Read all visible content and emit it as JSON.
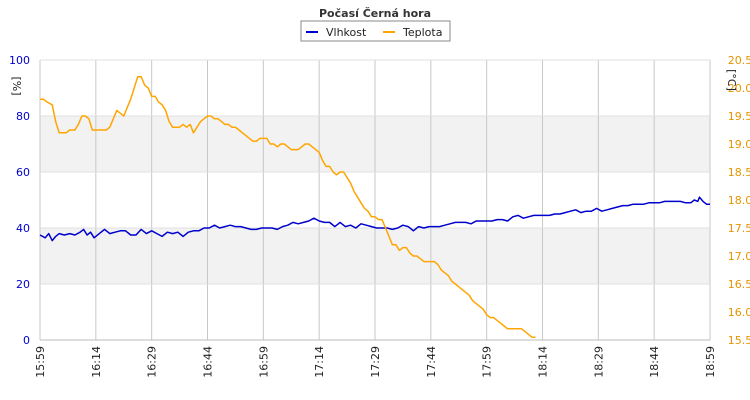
{
  "chart_data": {
    "type": "line",
    "title": "Počasí Černá hora",
    "legend_position": "top-center",
    "grid": true,
    "x_categories": [
      "15:59",
      "16:14",
      "16:29",
      "16:44",
      "16:59",
      "17:14",
      "17:29",
      "17:44",
      "17:59",
      "18:14",
      "18:29",
      "18:44",
      "18:59"
    ],
    "y_left": {
      "label": "[%]",
      "min": 0,
      "max": 100,
      "ticks": [
        0,
        20,
        40,
        60,
        80,
        100
      ]
    },
    "y_right": {
      "label": "[°C]",
      "min": 15.5,
      "max": 20.5,
      "ticks": [
        "15.5",
        "16.0",
        "16.5",
        "17.0",
        "17.5",
        "18.0",
        "18.5",
        "19.0",
        "19.5",
        "20.0",
        "20.5"
      ]
    },
    "series": [
      {
        "name": "Vlhkost",
        "axis": "left",
        "color": "#0000cc",
        "points": [
          [
            0,
            37.5
          ],
          [
            3,
            36.5
          ],
          [
            5,
            38
          ],
          [
            7,
            35.5
          ],
          [
            9,
            37
          ],
          [
            11,
            38
          ],
          [
            14,
            37.5
          ],
          [
            17,
            38
          ],
          [
            20,
            37.5
          ],
          [
            23,
            38.5
          ],
          [
            25,
            39.5
          ],
          [
            27,
            37.5
          ],
          [
            29,
            38.5
          ],
          [
            31,
            36.5
          ],
          [
            34,
            38
          ],
          [
            37,
            39.5
          ],
          [
            40,
            38
          ],
          [
            43,
            38.5
          ],
          [
            46,
            39
          ],
          [
            49,
            39
          ],
          [
            52,
            37.5
          ],
          [
            55,
            37.5
          ],
          [
            58,
            39.5
          ],
          [
            61,
            38
          ],
          [
            64,
            39
          ],
          [
            67,
            38
          ],
          [
            70,
            37
          ],
          [
            73,
            38.5
          ],
          [
            76,
            38
          ],
          [
            79,
            38.5
          ],
          [
            82,
            37
          ],
          [
            85,
            38.5
          ],
          [
            88,
            39
          ],
          [
            91,
            39
          ],
          [
            94,
            40
          ],
          [
            97,
            40
          ],
          [
            100,
            41
          ],
          [
            103,
            40
          ],
          [
            106,
            40.5
          ],
          [
            109,
            41
          ],
          [
            112,
            40.5
          ],
          [
            115,
            40.5
          ],
          [
            118,
            40
          ],
          [
            121,
            39.5
          ],
          [
            124,
            39.5
          ],
          [
            127,
            40
          ],
          [
            130,
            40
          ],
          [
            133,
            40
          ],
          [
            136,
            39.5
          ],
          [
            139,
            40.5
          ],
          [
            142,
            41
          ],
          [
            145,
            42
          ],
          [
            148,
            41.5
          ],
          [
            151,
            42
          ],
          [
            154,
            42.5
          ],
          [
            157,
            43.5
          ],
          [
            160,
            42.5
          ],
          [
            163,
            42
          ],
          [
            166,
            42
          ],
          [
            169,
            40.5
          ],
          [
            172,
            42
          ],
          [
            175,
            40.5
          ],
          [
            178,
            41
          ],
          [
            181,
            40
          ],
          [
            184,
            41.5
          ],
          [
            187,
            41
          ],
          [
            190,
            40.5
          ],
          [
            193,
            40
          ],
          [
            196,
            40
          ],
          [
            199,
            40
          ],
          [
            202,
            39.5
          ],
          [
            205,
            40
          ],
          [
            208,
            41
          ],
          [
            211,
            40.5
          ],
          [
            214,
            39
          ],
          [
            217,
            40.5
          ],
          [
            220,
            40
          ],
          [
            223,
            40.5
          ],
          [
            226,
            40.5
          ],
          [
            229,
            40.5
          ],
          [
            232,
            41
          ],
          [
            235,
            41.5
          ],
          [
            238,
            42
          ],
          [
            241,
            42
          ],
          [
            244,
            42
          ],
          [
            247,
            41.5
          ],
          [
            250,
            42.5
          ],
          [
            253,
            42.5
          ],
          [
            256,
            42.5
          ],
          [
            259,
            42.5
          ],
          [
            262,
            43
          ],
          [
            265,
            43
          ],
          [
            268,
            42.5
          ],
          [
            271,
            44
          ],
          [
            274,
            44.5
          ],
          [
            277,
            43.5
          ],
          [
            280,
            44
          ],
          [
            283,
            44.5
          ],
          [
            286,
            44.5
          ],
          [
            289,
            44.5
          ],
          [
            292,
            44.5
          ],
          [
            295,
            45
          ],
          [
            298,
            45
          ],
          [
            301,
            45.5
          ],
          [
            304,
            46
          ],
          [
            307,
            46.5
          ],
          [
            310,
            45.5
          ],
          [
            313,
            46
          ],
          [
            316,
            46
          ],
          [
            319,
            47
          ],
          [
            322,
            46
          ],
          [
            325,
            46.5
          ],
          [
            328,
            47
          ],
          [
            331,
            47.5
          ],
          [
            334,
            48
          ],
          [
            337,
            48
          ],
          [
            340,
            48.5
          ],
          [
            343,
            48.5
          ],
          [
            346,
            48.5
          ],
          [
            349,
            49
          ],
          [
            352,
            49
          ],
          [
            355,
            49
          ],
          [
            358,
            49.5
          ],
          [
            361,
            49.5
          ],
          [
            364,
            49.5
          ],
          [
            367,
            49.5
          ],
          [
            370,
            49
          ],
          [
            373,
            49
          ],
          [
            375,
            50
          ],
          [
            377,
            49.5
          ],
          [
            378,
            51
          ],
          [
            380,
            49.5
          ],
          [
            382,
            48.5
          ],
          [
            384,
            48.5
          ]
        ]
      },
      {
        "name": "Teplota",
        "axis": "right",
        "color": "#ffa500",
        "points": [
          [
            0,
            19.8
          ],
          [
            2,
            19.8
          ],
          [
            4,
            19.75
          ],
          [
            7,
            19.7
          ],
          [
            9,
            19.4
          ],
          [
            11,
            19.2
          ],
          [
            13,
            19.2
          ],
          [
            15,
            19.2
          ],
          [
            17,
            19.25
          ],
          [
            20,
            19.25
          ],
          [
            22,
            19.35
          ],
          [
            24,
            19.5
          ],
          [
            26,
            19.5
          ],
          [
            28,
            19.45
          ],
          [
            30,
            19.25
          ],
          [
            32,
            19.25
          ],
          [
            34,
            19.25
          ],
          [
            36,
            19.25
          ],
          [
            38,
            19.25
          ],
          [
            40,
            19.3
          ],
          [
            42,
            19.45
          ],
          [
            44,
            19.6
          ],
          [
            46,
            19.55
          ],
          [
            48,
            19.5
          ],
          [
            50,
            19.65
          ],
          [
            52,
            19.8
          ],
          [
            54,
            20.0
          ],
          [
            56,
            20.2
          ],
          [
            58,
            20.2
          ],
          [
            60,
            20.05
          ],
          [
            62,
            20.0
          ],
          [
            64,
            19.85
          ],
          [
            66,
            19.85
          ],
          [
            68,
            19.75
          ],
          [
            70,
            19.7
          ],
          [
            72,
            19.6
          ],
          [
            74,
            19.4
          ],
          [
            76,
            19.3
          ],
          [
            78,
            19.3
          ],
          [
            80,
            19.3
          ],
          [
            82,
            19.35
          ],
          [
            84,
            19.3
          ],
          [
            86,
            19.35
          ],
          [
            88,
            19.2
          ],
          [
            90,
            19.3
          ],
          [
            92,
            19.4
          ],
          [
            94,
            19.45
          ],
          [
            96,
            19.5
          ],
          [
            98,
            19.5
          ],
          [
            100,
            19.45
          ],
          [
            102,
            19.45
          ],
          [
            104,
            19.4
          ],
          [
            106,
            19.35
          ],
          [
            108,
            19.35
          ],
          [
            110,
            19.3
          ],
          [
            112,
            19.3
          ],
          [
            114,
            19.25
          ],
          [
            116,
            19.2
          ],
          [
            118,
            19.15
          ],
          [
            120,
            19.1
          ],
          [
            122,
            19.05
          ],
          [
            124,
            19.05
          ],
          [
            126,
            19.1
          ],
          [
            128,
            19.1
          ],
          [
            130,
            19.1
          ],
          [
            132,
            19.0
          ],
          [
            134,
            19.0
          ],
          [
            136,
            18.95
          ],
          [
            138,
            19.0
          ],
          [
            140,
            19.0
          ],
          [
            142,
            18.95
          ],
          [
            144,
            18.9
          ],
          [
            146,
            18.9
          ],
          [
            148,
            18.9
          ],
          [
            150,
            18.95
          ],
          [
            152,
            19.0
          ],
          [
            154,
            19.0
          ],
          [
            156,
            18.95
          ],
          [
            158,
            18.9
          ],
          [
            160,
            18.85
          ],
          [
            162,
            18.7
          ],
          [
            164,
            18.6
          ],
          [
            166,
            18.6
          ],
          [
            168,
            18.5
          ],
          [
            170,
            18.45
          ],
          [
            172,
            18.5
          ],
          [
            174,
            18.5
          ],
          [
            176,
            18.4
          ],
          [
            178,
            18.3
          ],
          [
            180,
            18.15
          ],
          [
            182,
            18.05
          ],
          [
            184,
            17.95
          ],
          [
            186,
            17.85
          ],
          [
            188,
            17.8
          ],
          [
            190,
            17.7
          ],
          [
            192,
            17.7
          ],
          [
            194,
            17.65
          ],
          [
            196,
            17.65
          ],
          [
            198,
            17.5
          ],
          [
            200,
            17.35
          ],
          [
            202,
            17.2
          ],
          [
            204,
            17.2
          ],
          [
            206,
            17.1
          ],
          [
            208,
            17.15
          ],
          [
            210,
            17.15
          ],
          [
            212,
            17.05
          ],
          [
            214,
            17.0
          ],
          [
            216,
            17.0
          ],
          [
            218,
            16.95
          ],
          [
            220,
            16.9
          ],
          [
            222,
            16.9
          ],
          [
            224,
            16.9
          ],
          [
            226,
            16.9
          ],
          [
            228,
            16.85
          ],
          [
            230,
            16.75
          ],
          [
            232,
            16.7
          ],
          [
            234,
            16.65
          ],
          [
            236,
            16.55
          ],
          [
            238,
            16.5
          ],
          [
            240,
            16.45
          ],
          [
            242,
            16.4
          ],
          [
            244,
            16.35
          ],
          [
            246,
            16.3
          ],
          [
            248,
            16.2
          ],
          [
            250,
            16.15
          ],
          [
            252,
            16.1
          ],
          [
            254,
            16.05
          ],
          [
            256,
            15.95
          ],
          [
            258,
            15.9
          ],
          [
            260,
            15.9
          ],
          [
            262,
            15.85
          ],
          [
            264,
            15.8
          ],
          [
            266,
            15.75
          ],
          [
            268,
            15.7
          ],
          [
            270,
            15.7
          ],
          [
            272,
            15.7
          ],
          [
            274,
            15.7
          ],
          [
            276,
            15.7
          ],
          [
            278,
            15.65
          ],
          [
            280,
            15.6
          ],
          [
            282,
            15.55
          ],
          [
            284,
            15.55
          ]
        ]
      }
    ]
  }
}
